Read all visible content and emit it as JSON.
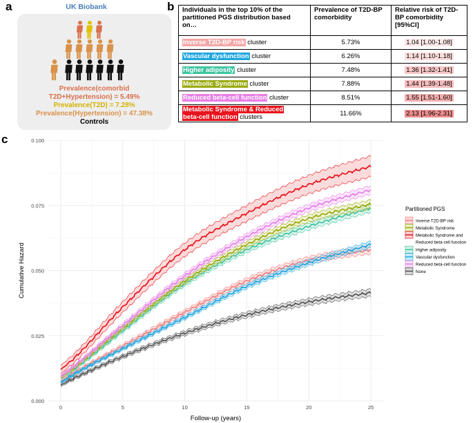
{
  "panel_a": {
    "letter": "a",
    "title": "UK Biobank",
    "lines": [
      {
        "text": "Prevalence(comorbid",
        "color": "#d9704c"
      },
      {
        "text": "T2D+Hypertension) = 5.49%",
        "color": "#d9704c"
      },
      {
        "text": "Prevalence(T2D) = 7.28%",
        "color": "#d4b200"
      },
      {
        "text": "Prevalence(Hypertension) = 47.38%",
        "color": "#d9924a"
      },
      {
        "text": "Controls",
        "color": "#000000"
      }
    ],
    "figure_colors": {
      "comorbid": "#d9704c",
      "t2d": "#e0c000",
      "hypertension": "#d9924a",
      "control": "#111111"
    }
  },
  "panel_b": {
    "letter": "b",
    "headers": [
      "Individuals in the top 10% of the partitioned PGS distribution based on…",
      "Prevalence of T2D-BP comorbidity",
      "Relative risk of T2D-BP comorbidity [95%CI]"
    ],
    "rows": [
      {
        "label": "Inverse T2D-BP risk",
        "label2": "",
        "suffix": " cluster",
        "color": "#f4a6a6",
        "prevalence": "5.73%",
        "rr": "1.04 [1.00-1.08]",
        "rr_bg": "#fde8e8"
      },
      {
        "label": "Vascular dysfunction",
        "label2": "",
        "suffix": " cluster",
        "color": "#1ea6e0",
        "prevalence": "6.26%",
        "rr": "1.14 [1.10-1.18]",
        "rr_bg": "#fbdcdc"
      },
      {
        "label": "Higher adiposity",
        "label2": "",
        "suffix": " cluster",
        "color": "#3fc4a0",
        "prevalence": "7.48%",
        "rr": "1.36 [1.32-1.41]",
        "rr_bg": "#f8c6c6"
      },
      {
        "label": "Metabolic Syndrome",
        "label2": "",
        "suffix": " cluster",
        "color": "#9aaa10",
        "prevalence": "7.88%",
        "rr": "1.44 [1.39-1.48]",
        "rr_bg": "#f6bcbc"
      },
      {
        "label": "Reduced beta-cell function",
        "label2": "",
        "suffix": " cluster",
        "color": "#e67ee6",
        "prevalence": "8.51%",
        "rr": "1.55 [1.51-1.60]",
        "rr_bg": "#f4b0b0"
      },
      {
        "label": "Metabolic Syndrome & Reduced",
        "label2": "beta-cell function",
        "suffix": " clusters",
        "color": "#e8141e",
        "prevalence": "11.66%",
        "rr": "2.13 [1.96-2.31]",
        "rr_bg": "#ec8e8e"
      }
    ]
  },
  "chart_data": {
    "panel_letter": "c",
    "type": "line",
    "xlabel": "Follow-up (years)",
    "ylabel": "Cumulative Hazard",
    "xlim": [
      -1,
      26
    ],
    "ylim": [
      0,
      0.1
    ],
    "xticks": [
      0,
      5,
      10,
      15,
      20,
      25
    ],
    "yticks": [
      0.0,
      0.025,
      0.05,
      0.075,
      0.1
    ],
    "ytick_labels": [
      "0.000",
      "0.025",
      "0.050",
      "0.075",
      "0.100"
    ],
    "grid": true,
    "legend_title": "Partitioned PGS",
    "legend_position": "right",
    "series": [
      {
        "name": "None",
        "color": "#555555",
        "fill": "#bbbbbb",
        "ci": 0.0014,
        "x": [
          0,
          1,
          5,
          10,
          15,
          20,
          25
        ],
        "y": [
          0.006,
          0.0085,
          0.017,
          0.026,
          0.033,
          0.038,
          0.0415
        ]
      },
      {
        "name": "Inverse T2D-BP risk",
        "color": "#f08080",
        "fill": "#f9c0c0",
        "ci": 0.0015,
        "x": [
          0,
          1,
          5,
          10,
          15,
          20,
          25
        ],
        "y": [
          0.0075,
          0.0105,
          0.021,
          0.034,
          0.046,
          0.054,
          0.058
        ]
      },
      {
        "name": "Vascular dysfunction",
        "color": "#1ea6e0",
        "fill": "#a6dcf3",
        "ci": 0.0012,
        "x": [
          0,
          1,
          5,
          10,
          15,
          20,
          25
        ],
        "y": [
          0.007,
          0.01,
          0.02,
          0.032,
          0.044,
          0.053,
          0.06
        ]
      },
      {
        "name": "Higher adiposity",
        "color": "#3fc4a0",
        "fill": "#b6e8da",
        "ci": 0.0015,
        "x": [
          0,
          1,
          5,
          10,
          15,
          20,
          25
        ],
        "y": [
          0.009,
          0.012,
          0.027,
          0.045,
          0.058,
          0.067,
          0.074
        ]
      },
      {
        "name": "Metabolic Syndrome",
        "color": "#9aaa10",
        "fill": "#dde4a0",
        "ci": 0.0016,
        "x": [
          0,
          1,
          5,
          10,
          15,
          20,
          25
        ],
        "y": [
          0.009,
          0.0125,
          0.028,
          0.046,
          0.06,
          0.07,
          0.0755
        ]
      },
      {
        "name": "Reduced beta-cell function",
        "color": "#e67ee6",
        "fill": "#f6caf6",
        "ci": 0.0016,
        "x": [
          0,
          1,
          5,
          10,
          15,
          20,
          25
        ],
        "y": [
          0.0095,
          0.013,
          0.029,
          0.048,
          0.063,
          0.074,
          0.081
        ]
      },
      {
        "name": "Metabolic Syndrome and Reduced beta-cell function",
        "color": "#e8141e",
        "fill": "#f7b0b0",
        "ci": 0.004,
        "x": [
          0,
          1,
          5,
          10,
          15,
          20,
          25
        ],
        "y": [
          0.012,
          0.016,
          0.036,
          0.058,
          0.072,
          0.083,
          0.09
        ]
      }
    ],
    "legend_order": [
      {
        "index": 1,
        "label": "Inverse T2D-BP risk"
      },
      {
        "index": 4,
        "label": "Metabolic Syndrome"
      },
      {
        "index": 6,
        "label": "Metabolic Syndrome and"
      },
      {
        "index": 6,
        "label": "Reduced beta-cell function",
        "continuation": true
      },
      {
        "index": 3,
        "label": "Higher adiposity"
      },
      {
        "index": 2,
        "label": "Vascular dysfunction"
      },
      {
        "index": 5,
        "label": "Reduced beta-cell function"
      },
      {
        "index": 0,
        "label": "None"
      }
    ]
  }
}
